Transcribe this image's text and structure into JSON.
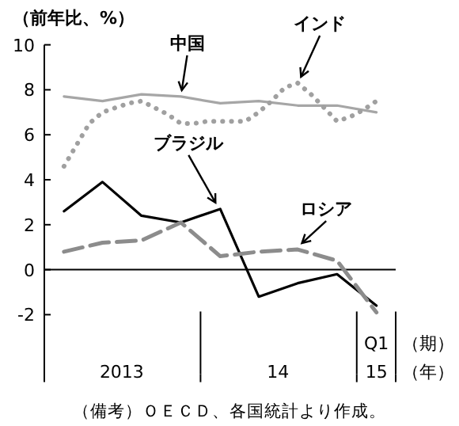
{
  "chart_data": {
    "type": "line",
    "ylabel": "（前年比、%）",
    "xlim": [
      "2012-11-16",
      "2015-02-15"
    ],
    "ylim": [
      -5,
      10
    ],
    "yticks": [
      -2,
      0,
      2,
      4,
      6,
      8,
      10
    ],
    "xticks": [
      {
        "value": "2013-05-16",
        "label": "2013"
      },
      {
        "value": "2013-11-16",
        "label": null
      },
      {
        "value": "2014-05-16",
        "label": "14"
      },
      {
        "value": "2014-11-16",
        "label": null
      },
      {
        "value": "2015-01-01",
        "label": "15"
      },
      {
        "value": "2015-02-15",
        "label": null
      }
    ],
    "grid": false,
    "series": [
      {
        "name": "中国",
        "color": "#a6a6a6",
        "line_style": "solid",
        "x": [
          "2013-01",
          "2013-04",
          "2013-07",
          "2013-10",
          "2014-01",
          "2014-04",
          "2014-07",
          "2014-10",
          "2015-01"
        ],
        "values": [
          7.7,
          7.5,
          7.8,
          7.7,
          7.4,
          7.5,
          7.3,
          7.3,
          7.0
        ]
      },
      {
        "name": "インド",
        "color": "#a0a0a0",
        "line_style": "dotted",
        "x": [
          "2013-01",
          "2013-02",
          "2013-03",
          "2013-04",
          "2013-05",
          "2013-06",
          "2013-07",
          "2013-08",
          "2013-09",
          "2013-10",
          "2013-11",
          "2013-12",
          "2014-01",
          "2014-02",
          "2014-03",
          "2014-04",
          "2014-05",
          "2014-06",
          "2014-07",
          "2014-08",
          "2014-09",
          "2014-10",
          "2014-11",
          "2014-12",
          "2015-01"
        ],
        "values": [
          4.6,
          5.6,
          6.5,
          7.0,
          7.2,
          7.4,
          7.5,
          7.2,
          6.9,
          6.5,
          6.5,
          6.6,
          6.6,
          6.6,
          6.6,
          7.0,
          7.5,
          8.1,
          8.3,
          7.8,
          7.2,
          6.6,
          6.8,
          7.1,
          7.5
        ]
      },
      {
        "name": "ブラジル",
        "color": "#000000",
        "line_style": "solid",
        "x": [
          "2013-01",
          "2013-04",
          "2013-07",
          "2013-10",
          "2014-01",
          "2014-04",
          "2014-07",
          "2014-10",
          "2015-01"
        ],
        "values": [
          2.6,
          3.9,
          2.4,
          2.1,
          2.7,
          -1.2,
          -0.6,
          -0.2,
          -1.6
        ]
      },
      {
        "name": "ロシア",
        "color": "#8c8c8c",
        "line_style": "dashed",
        "x": [
          "2013-01",
          "2013-04",
          "2013-07",
          "2013-10",
          "2014-01",
          "2014-04",
          "2014-07",
          "2014-10",
          "2015-01"
        ],
        "values": [
          0.8,
          1.2,
          1.3,
          2.1,
          0.6,
          0.8,
          0.9,
          0.4,
          -1.9
        ]
      }
    ],
    "ref_lines": [
      {
        "axis": "y",
        "value": 0,
        "color": "#000000"
      }
    ],
    "annotations": [
      "Q1",
      "（期）",
      "（年）",
      "（備考）ＯＥＣＤ、各国統計より作成。"
    ]
  }
}
